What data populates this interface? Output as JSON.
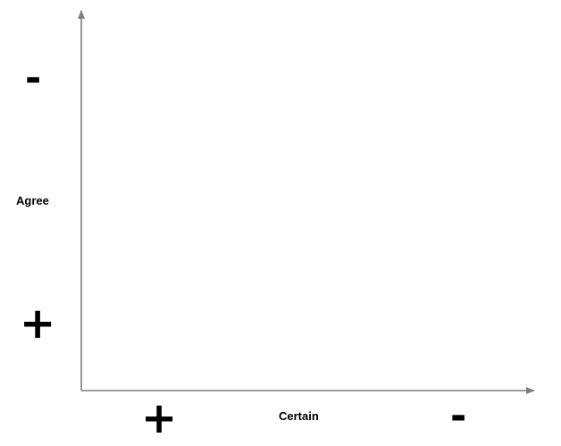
{
  "axes": {
    "x_label": "Certain",
    "y_label": "Agree",
    "color": "#7f7f7f"
  },
  "signs": {
    "y_top": "-",
    "y_bottom": "+",
    "x_left": "+",
    "x_right": "-"
  }
}
